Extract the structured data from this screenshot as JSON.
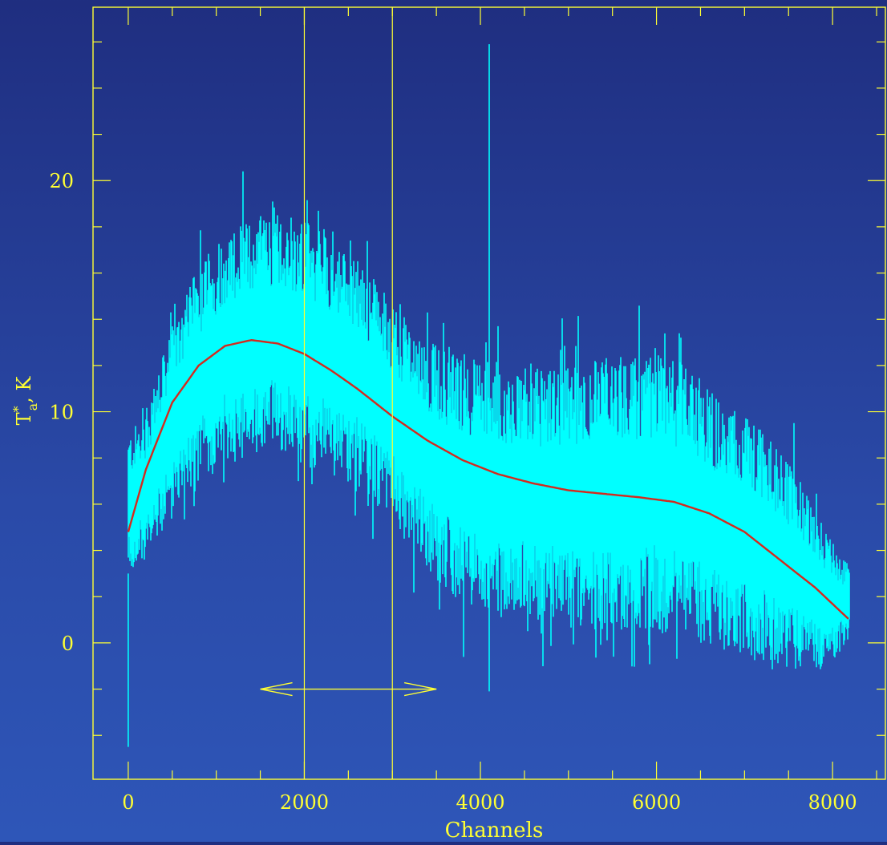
{
  "chart_data": {
    "type": "line",
    "xlabel": "Channels",
    "ylabel_main": "T",
    "ylabel_sup": "*",
    "ylabel_sub": "a",
    "ylabel_tail": ", K",
    "xlim": [
      -400,
      8600
    ],
    "ylim": [
      -5.9,
      27.5
    ],
    "x_ticks": [
      0,
      2000,
      4000,
      6000,
      8000
    ],
    "y_ticks": [
      0,
      10,
      20
    ],
    "colors": {
      "axes": "#ffff33",
      "spectrum": "#00ffff",
      "fit": "#d42a1e",
      "markers": "#ffff33"
    },
    "series": [
      {
        "role": "spectrum",
        "x_range": [
          0,
          8191
        ],
        "envelope": {
          "x": [
            0,
            200,
            500,
            800,
            1100,
            1400,
            1700,
            2000,
            2300,
            2600,
            2900,
            3200,
            3500,
            3800,
            4100,
            4500,
            5000,
            5500,
            6000,
            6400,
            6800,
            7200,
            7600,
            8000,
            8191
          ],
          "upper": [
            8.5,
            9.5,
            13.0,
            15.5,
            17.0,
            17.5,
            17.8,
            17.5,
            16.8,
            15.8,
            14.5,
            13.0,
            12.0,
            11.5,
            11.3,
            11.0,
            11.0,
            11.5,
            11.5,
            11.0,
            9.5,
            8.5,
            6.5,
            4.0,
            3.0
          ],
          "lower": [
            3.5,
            4.0,
            6.0,
            7.5,
            8.5,
            9.0,
            9.0,
            8.5,
            8.0,
            7.5,
            6.5,
            5.0,
            3.5,
            2.5,
            2.0,
            2.0,
            1.5,
            1.5,
            1.5,
            1.0,
            0.5,
            0.0,
            -0.5,
            -0.5,
            0.5
          ]
        },
        "spikes": [
          {
            "x": 4100,
            "top": 25.9,
            "bottom": -2.1
          },
          {
            "x": 0,
            "top": 3.0,
            "bottom": -4.5
          }
        ]
      },
      {
        "role": "baseline-fit",
        "x": [
          0,
          200,
          500,
          800,
          1100,
          1400,
          1700,
          2000,
          2300,
          2600,
          3000,
          3400,
          3800,
          4200,
          4600,
          5000,
          5400,
          5800,
          6200,
          6600,
          7000,
          7400,
          7800,
          8191
        ],
        "y": [
          4.8,
          7.5,
          10.4,
          12.0,
          12.85,
          13.1,
          12.95,
          12.5,
          11.8,
          11.0,
          9.8,
          8.75,
          7.9,
          7.3,
          6.9,
          6.6,
          6.45,
          6.3,
          6.1,
          5.6,
          4.8,
          3.6,
          2.4,
          1.0
        ]
      }
    ],
    "annotations": {
      "vertical_lines": [
        2000,
        3000
      ],
      "arrow": {
        "x_from": 1500,
        "x_to": 3500,
        "y": -2.0
      }
    }
  }
}
